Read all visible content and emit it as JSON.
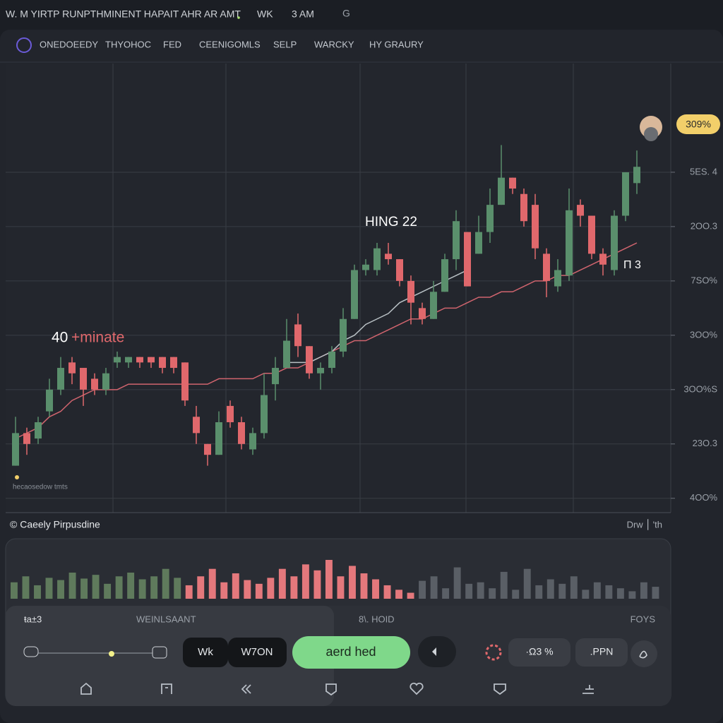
{
  "status_bar": {
    "title": "W. M YIRTP RUNPTHMINENT HAPAIT AHR AR AMT",
    "mode": "WK",
    "time": "3 AM",
    "icon": "G"
  },
  "tabs": [
    "ONEDOEEDY",
    "THYOHOC",
    "FED",
    "CEENIGOMLS",
    "SELP",
    "WARCKY",
    "HY GRAURY"
  ],
  "badge": "309%",
  "chart_data": {
    "type": "candlestick",
    "up_color": "#5a8f6c",
    "down_color": "#e0686c",
    "grid": true,
    "ylim": [
      -0.25,
      8
    ],
    "yticks": [
      {
        "value": 6,
        "label": "5ES. 4"
      },
      {
        "value": 5,
        "label": "2OO.3"
      },
      {
        "value": 4,
        "label": "7SO%"
      },
      {
        "value": 3,
        "label": "3OO%"
      },
      {
        "value": 2,
        "label": "3OO%S"
      },
      {
        "value": 1,
        "label": "23O.3"
      },
      {
        "value": 0,
        "label": "4OO%"
      }
    ],
    "open": [
      0.6,
      1.2,
      1.1,
      1.6,
      2.0,
      2.5,
      2.4,
      2.2,
      2.0,
      2.5,
      2.5,
      2.6,
      2.6,
      2.6,
      2.6,
      2.5,
      1.5,
      1.0,
      0.8,
      1.7,
      1.4,
      0.9,
      1.2,
      2.1,
      2.4,
      3.2,
      2.8,
      2.3,
      2.4,
      2.7,
      3.3,
      4.2,
      4.2,
      4.5,
      4.4,
      4.0,
      3.5,
      3.3,
      3.8,
      4.4,
      4.9,
      4.5,
      4.9,
      5.4,
      5.9,
      5.6,
      5.4,
      4.5,
      3.9,
      4.1,
      5.4,
      5.2,
      4.5,
      4.2,
      5.2,
      5.8
    ],
    "high": [
      1.5,
      1.3,
      1.5,
      2.2,
      2.6,
      2.6,
      2.4,
      2.3,
      2.4,
      2.7,
      2.6,
      2.6,
      2.6,
      2.6,
      2.6,
      2.5,
      1.7,
      1.0,
      1.6,
      1.8,
      1.5,
      1.3,
      2.3,
      2.6,
      3.3,
      3.4,
      2.8,
      2.5,
      2.8,
      3.5,
      4.3,
      4.4,
      4.7,
      4.7,
      4.4,
      4.1,
      3.6,
      4.0,
      4.5,
      5.3,
      4.9,
      5.2,
      5.7,
      6.5,
      5.9,
      5.7,
      5.6,
      4.6,
      4.4,
      5.7,
      5.5,
      5.2,
      4.6,
      5.3,
      6.0,
      6.4
    ],
    "low": [
      0.6,
      0.8,
      1.0,
      1.5,
      1.9,
      2.1,
      1.7,
      1.9,
      1.9,
      2.4,
      2.4,
      2.4,
      2.4,
      2.3,
      2.3,
      1.7,
      1.0,
      0.6,
      0.8,
      1.3,
      0.9,
      0.8,
      1.1,
      1.8,
      2.4,
      2.6,
      2.2,
      2.0,
      2.3,
      2.6,
      3.3,
      4.1,
      4.1,
      4.3,
      3.9,
      3.2,
      3.2,
      3.3,
      3.8,
      4.2,
      3.9,
      4.5,
      4.7,
      5.4,
      5.6,
      5.0,
      4.4,
      3.7,
      3.8,
      4.0,
      5.0,
      4.4,
      4.1,
      4.1,
      5.1,
      5.6
    ],
    "close": [
      1.2,
      1.0,
      1.4,
      2.0,
      2.4,
      2.3,
      2.0,
      2.0,
      2.3,
      2.6,
      2.6,
      2.5,
      2.5,
      2.4,
      2.4,
      1.8,
      1.2,
      0.8,
      1.4,
      1.4,
      1.0,
      1.2,
      1.9,
      2.4,
      2.9,
      2.8,
      2.3,
      2.4,
      2.7,
      3.3,
      4.2,
      4.3,
      4.6,
      4.4,
      4.0,
      3.6,
      3.3,
      3.8,
      4.4,
      5.1,
      3.9,
      4.9,
      5.4,
      5.9,
      5.7,
      5.1,
      4.6,
      4.0,
      4.2,
      5.3,
      5.2,
      4.5,
      4.3,
      5.2,
      6.0,
      6.1
    ],
    "lines": [
      {
        "color": "#d0646e",
        "values": [
          1.1,
          1.2,
          1.3,
          1.5,
          1.6,
          1.8,
          1.9,
          2.0,
          2.0,
          2.0,
          2.1,
          2.1,
          2.1,
          2.1,
          2.1,
          2.1,
          2.1,
          2.1,
          2.2,
          2.2,
          2.2,
          2.2,
          2.3,
          2.3,
          2.4,
          2.4,
          2.5,
          2.6,
          2.7,
          2.8,
          2.9,
          2.9,
          3.0,
          3.1,
          3.2,
          3.3,
          3.3,
          3.4,
          3.5,
          3.5,
          3.6,
          3.7,
          3.7,
          3.8,
          3.8,
          3.9,
          4.0,
          4.0,
          4.1,
          4.1,
          4.2,
          4.3,
          4.4,
          4.5,
          4.6,
          4.7
        ]
      },
      {
        "color": "#b8c0c4",
        "values": [
          null,
          null,
          null,
          null,
          null,
          null,
          null,
          null,
          null,
          null,
          null,
          null,
          null,
          null,
          null,
          null,
          null,
          null,
          null,
          null,
          null,
          null,
          null,
          null,
          2.5,
          2.5,
          2.5,
          2.6,
          2.7,
          2.9,
          3.0,
          3.2,
          3.3,
          3.4,
          3.6,
          3.7,
          3.8,
          3.9,
          4.0,
          4.1,
          4.2,
          null,
          null,
          null,
          null,
          null,
          null,
          null,
          null,
          null,
          null,
          null,
          null,
          null,
          null,
          null
        ]
      }
    ],
    "annotations": {
      "peak": "HING 22",
      "right": "П 3",
      "left_number": "40",
      "left_text": "+minate",
      "legend": "hecaosedow tmts"
    },
    "volume": {
      "values": [
        22,
        30,
        18,
        28,
        25,
        35,
        27,
        32,
        20,
        30,
        35,
        26,
        30,
        40,
        28,
        18,
        30,
        40,
        22,
        34,
        25,
        20,
        28,
        40,
        30,
        46,
        38,
        52,
        30,
        44,
        34,
        26,
        18,
        12,
        8,
        24,
        30,
        14,
        42,
        20,
        22,
        14,
        36,
        12,
        40,
        18,
        26,
        20,
        30,
        12,
        22,
        18,
        14,
        10,
        22,
        16
      ],
      "colors": [
        "#5f7a5c",
        "#5f7a5c",
        "#5f7a5c",
        "#5f7a5c",
        "#5f7a5c",
        "#5f7a5c",
        "#5f7a5c",
        "#5f7a5c",
        "#5f7a5c",
        "#5f7a5c",
        "#5f7a5c",
        "#5f7a5c",
        "#5f7a5c",
        "#5f7a5c",
        "#5f7a5c",
        "#e4787c",
        "#e4787c",
        "#e4787c",
        "#e4787c",
        "#e4787c",
        "#e4787c",
        "#e4787c",
        "#e4787c",
        "#e4787c",
        "#e4787c",
        "#e4787c",
        "#e4787c",
        "#e4787c",
        "#e4787c",
        "#e4787c",
        "#e4787c",
        "#e4787c",
        "#e4787c",
        "#e4787c",
        "#e4787c",
        "#5a5f66",
        "#5a5f66",
        "#5a5f66",
        "#5a5f66",
        "#5a5f66",
        "#5a5f66",
        "#5a5f66",
        "#5a5f66",
        "#5a5f66",
        "#5a5f66",
        "#5a5f66",
        "#5a5f66",
        "#5a5f66",
        "#5a5f66",
        "#5a5f66",
        "#5a5f66",
        "#5a5f66",
        "#5a5f66",
        "#5a5f66",
        "#5a5f66",
        "#5a5f66"
      ]
    }
  },
  "panel": {
    "title": "© Caeely Pirpusdine",
    "right": "Drw ⎮ 'th"
  },
  "controls": {
    "left_label": "ŧa±3",
    "center_label": "WEINLSAANT",
    "mid_label": "8\\. HOID",
    "right_label": "FOYS",
    "buttons": [
      "Wk",
      "W7ON",
      "aerd hed"
    ],
    "value_box": "·Ω3 %",
    "pill": ".PPN"
  }
}
